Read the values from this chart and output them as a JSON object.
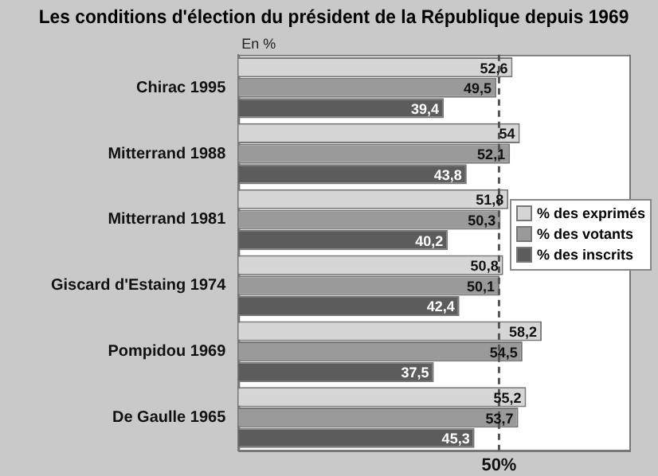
{
  "chart_data": {
    "type": "bar",
    "orientation": "horizontal",
    "title": "Les conditions d'élection du président de la République depuis 1969",
    "categories": [
      "Chirac 1995",
      "Mitterrand 1988",
      "Mitterrand 1981",
      "Giscard d'Estaing 1974",
      "Pompidou 1969",
      "De Gaulle 1965"
    ],
    "series": [
      {
        "name": "% des exprimés",
        "color": "#d6d6d6",
        "values": [
          52.6,
          54,
          51.8,
          50.8,
          58.2,
          55.2
        ],
        "value_labels": [
          "52,6",
          "54",
          "51,8",
          "50,8",
          "58,2",
          "55,2"
        ]
      },
      {
        "name": "% des votants",
        "color": "#9a9a9a",
        "values": [
          49.5,
          52.1,
          50.3,
          50.1,
          54.5,
          53.7
        ],
        "value_labels": [
          "49,5",
          "52,1",
          "50,3",
          "50,1",
          "54,5",
          "53,7"
        ]
      },
      {
        "name": "% des inscrits",
        "color": "#5c5c5c",
        "values": [
          39.4,
          43.8,
          40.2,
          42.4,
          37.5,
          45.3
        ],
        "value_labels": [
          "39,4",
          "43,8",
          "40,2",
          "42,4",
          "37,5",
          "45,3"
        ]
      }
    ],
    "xlim": [
      0,
      75
    ],
    "grid": false,
    "legend": "right",
    "tick_labels": "y",
    "ref_lines": [
      {
        "axis": "x",
        "value": 50,
        "label": "50%",
        "line_style": "dashed",
        "color": "#555555"
      }
    ],
    "annotations": [
      "En %"
    ]
  }
}
